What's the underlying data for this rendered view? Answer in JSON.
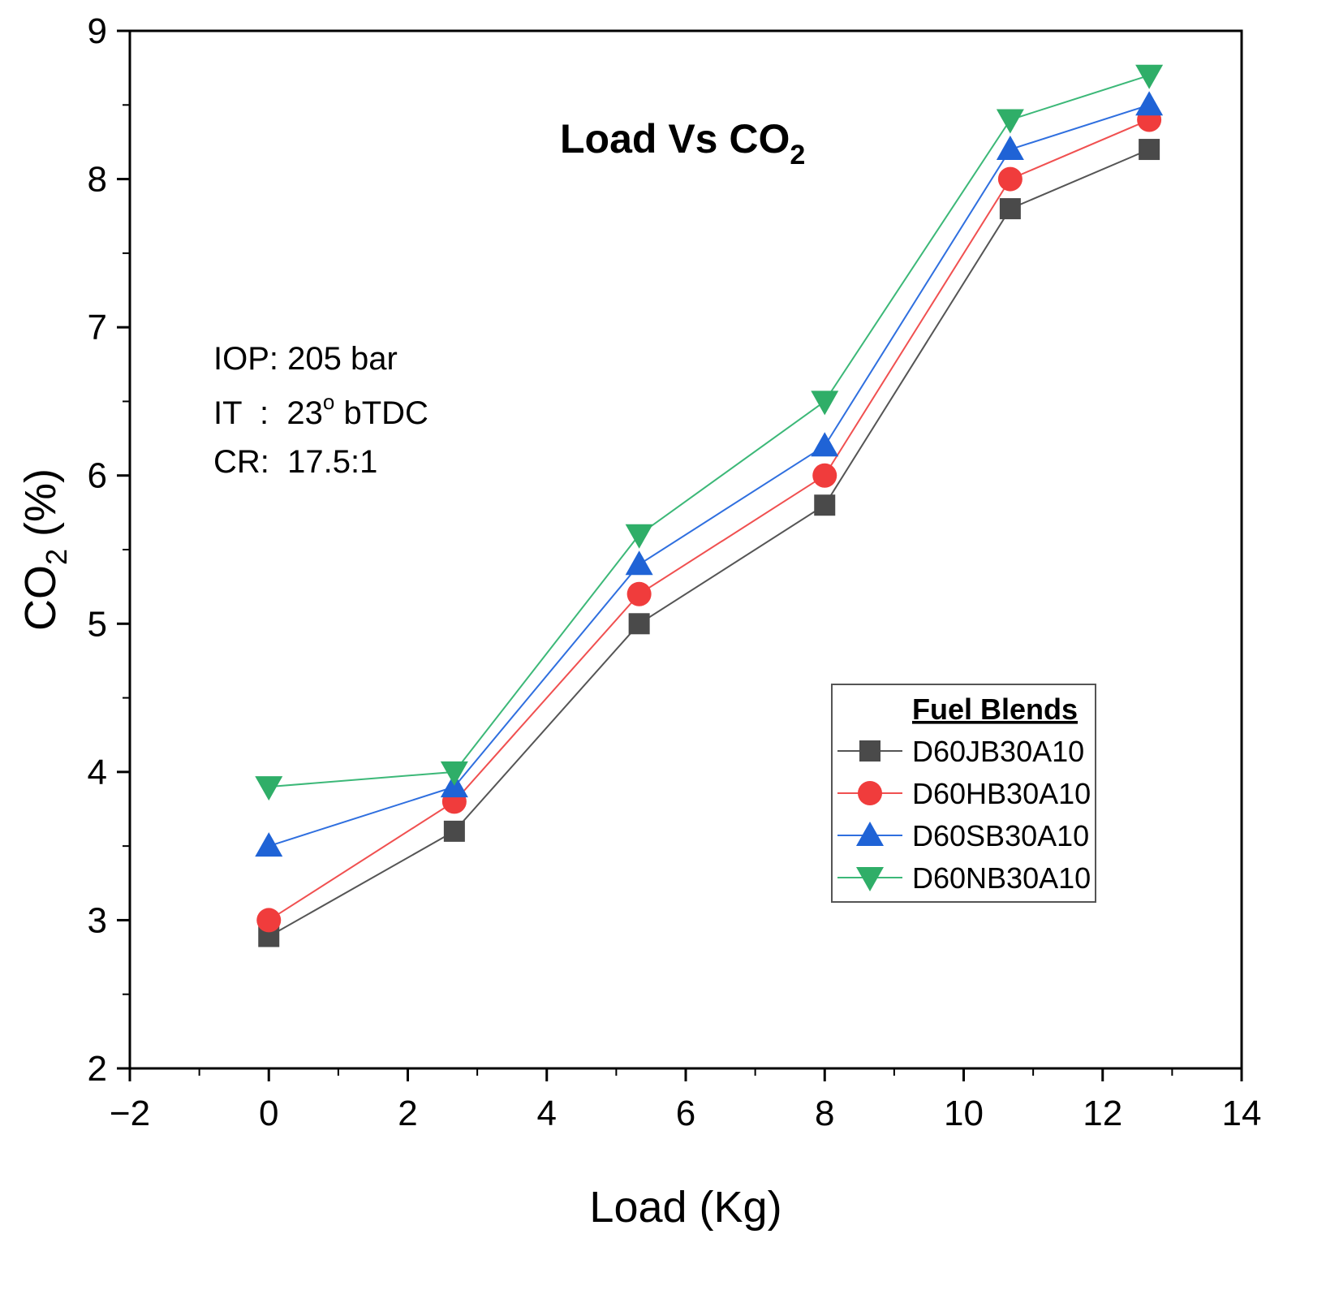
{
  "chart_data": {
    "type": "line",
    "title": {
      "main": "Load Vs CO",
      "sub": "2"
    },
    "xlabel": "Load (Kg)",
    "ylabel": {
      "pre": "CO",
      "sub": "2",
      "post": " (%)"
    },
    "xlim": [
      -2,
      14
    ],
    "ylim": [
      2,
      9
    ],
    "xticks": [
      -2,
      0,
      2,
      4,
      6,
      8,
      10,
      12,
      14
    ],
    "xtick_labels": [
      "−2",
      "0",
      "2",
      "4",
      "6",
      "8",
      "10",
      "12",
      "14"
    ],
    "yticks": [
      2,
      3,
      4,
      5,
      6,
      7,
      8,
      9
    ],
    "ytick_labels": [
      "2",
      "3",
      "4",
      "5",
      "6",
      "7",
      "8",
      "9"
    ],
    "x": [
      0,
      2.67,
      5.33,
      8,
      10.67,
      12.67
    ],
    "series": [
      {
        "name": "D60JB30A10",
        "marker": "square",
        "color": "#4a4a4a",
        "line_color": "#555555",
        "values": [
          2.89,
          3.6,
          5.0,
          5.8,
          7.8,
          8.2
        ]
      },
      {
        "name": "D60HB30A10",
        "marker": "circle",
        "color": "#f03c3c",
        "line_color": "#f05050",
        "values": [
          3.0,
          3.8,
          5.2,
          6.0,
          8.0,
          8.4
        ]
      },
      {
        "name": "D60SB30A10",
        "marker": "triangle-up",
        "color": "#1f63d6",
        "line_color": "#2f6fdf",
        "values": [
          3.5,
          3.9,
          5.4,
          6.2,
          8.2,
          8.5
        ]
      },
      {
        "name": "D60NB30A10",
        "marker": "triangle-down",
        "color": "#2fae68",
        "line_color": "#3cb878",
        "values": [
          3.9,
          4.0,
          5.6,
          6.5,
          8.4,
          8.7
        ]
      }
    ],
    "legend": {
      "title": "Fuel Blends",
      "position": "lower-right"
    },
    "annotations": [
      {
        "text": "IOP: 205 bar"
      },
      {
        "text_pre": "IT  :  23",
        "sup": "o",
        "text_post": " bTDC"
      },
      {
        "text": "CR:  17.5:1"
      }
    ],
    "grid": false
  }
}
